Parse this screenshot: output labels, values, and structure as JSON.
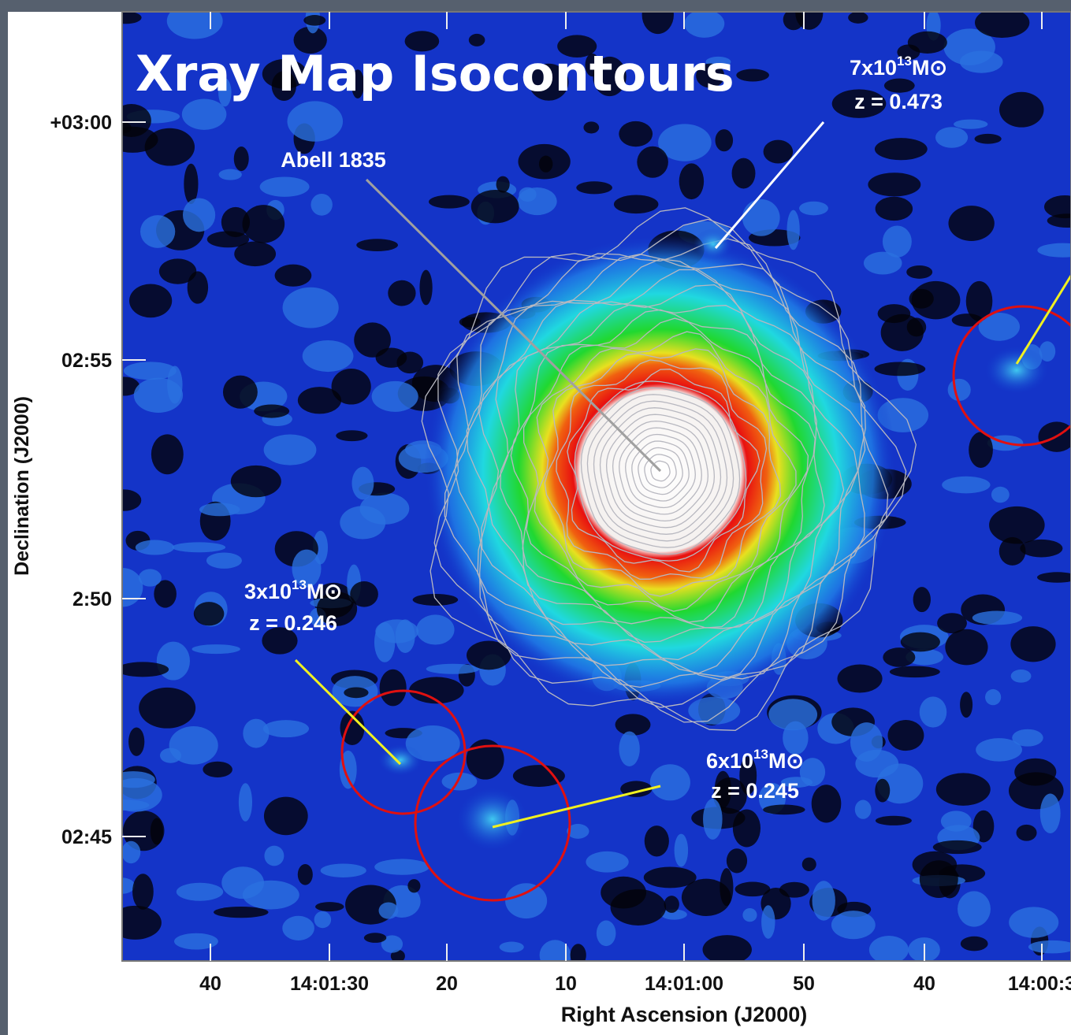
{
  "title": "Xray Map Isocontours",
  "cluster": "Abell 1835",
  "x_axis": {
    "label": "Right Ascension (J2000)",
    "ticks": [
      "40",
      "14:01:30",
      "20",
      "10",
      "14:01:00",
      "50",
      "40",
      "14:00:3"
    ]
  },
  "y_axis": {
    "label": "Declination (J2000)",
    "ticks": [
      "+03:00",
      "02:55",
      "2:50",
      "02:45"
    ]
  },
  "annotations": [
    {
      "mass": "7x10",
      "exponent": "13",
      "unit": "M⊙",
      "redshift": "z = 0.473"
    },
    {
      "mass": "3x10",
      "exponent": "13",
      "unit": "M⊙",
      "redshift": "z = 0.246"
    },
    {
      "mass": "6x10",
      "exponent": "13",
      "unit": "M⊙",
      "redshift": "z = 0.245"
    }
  ]
}
